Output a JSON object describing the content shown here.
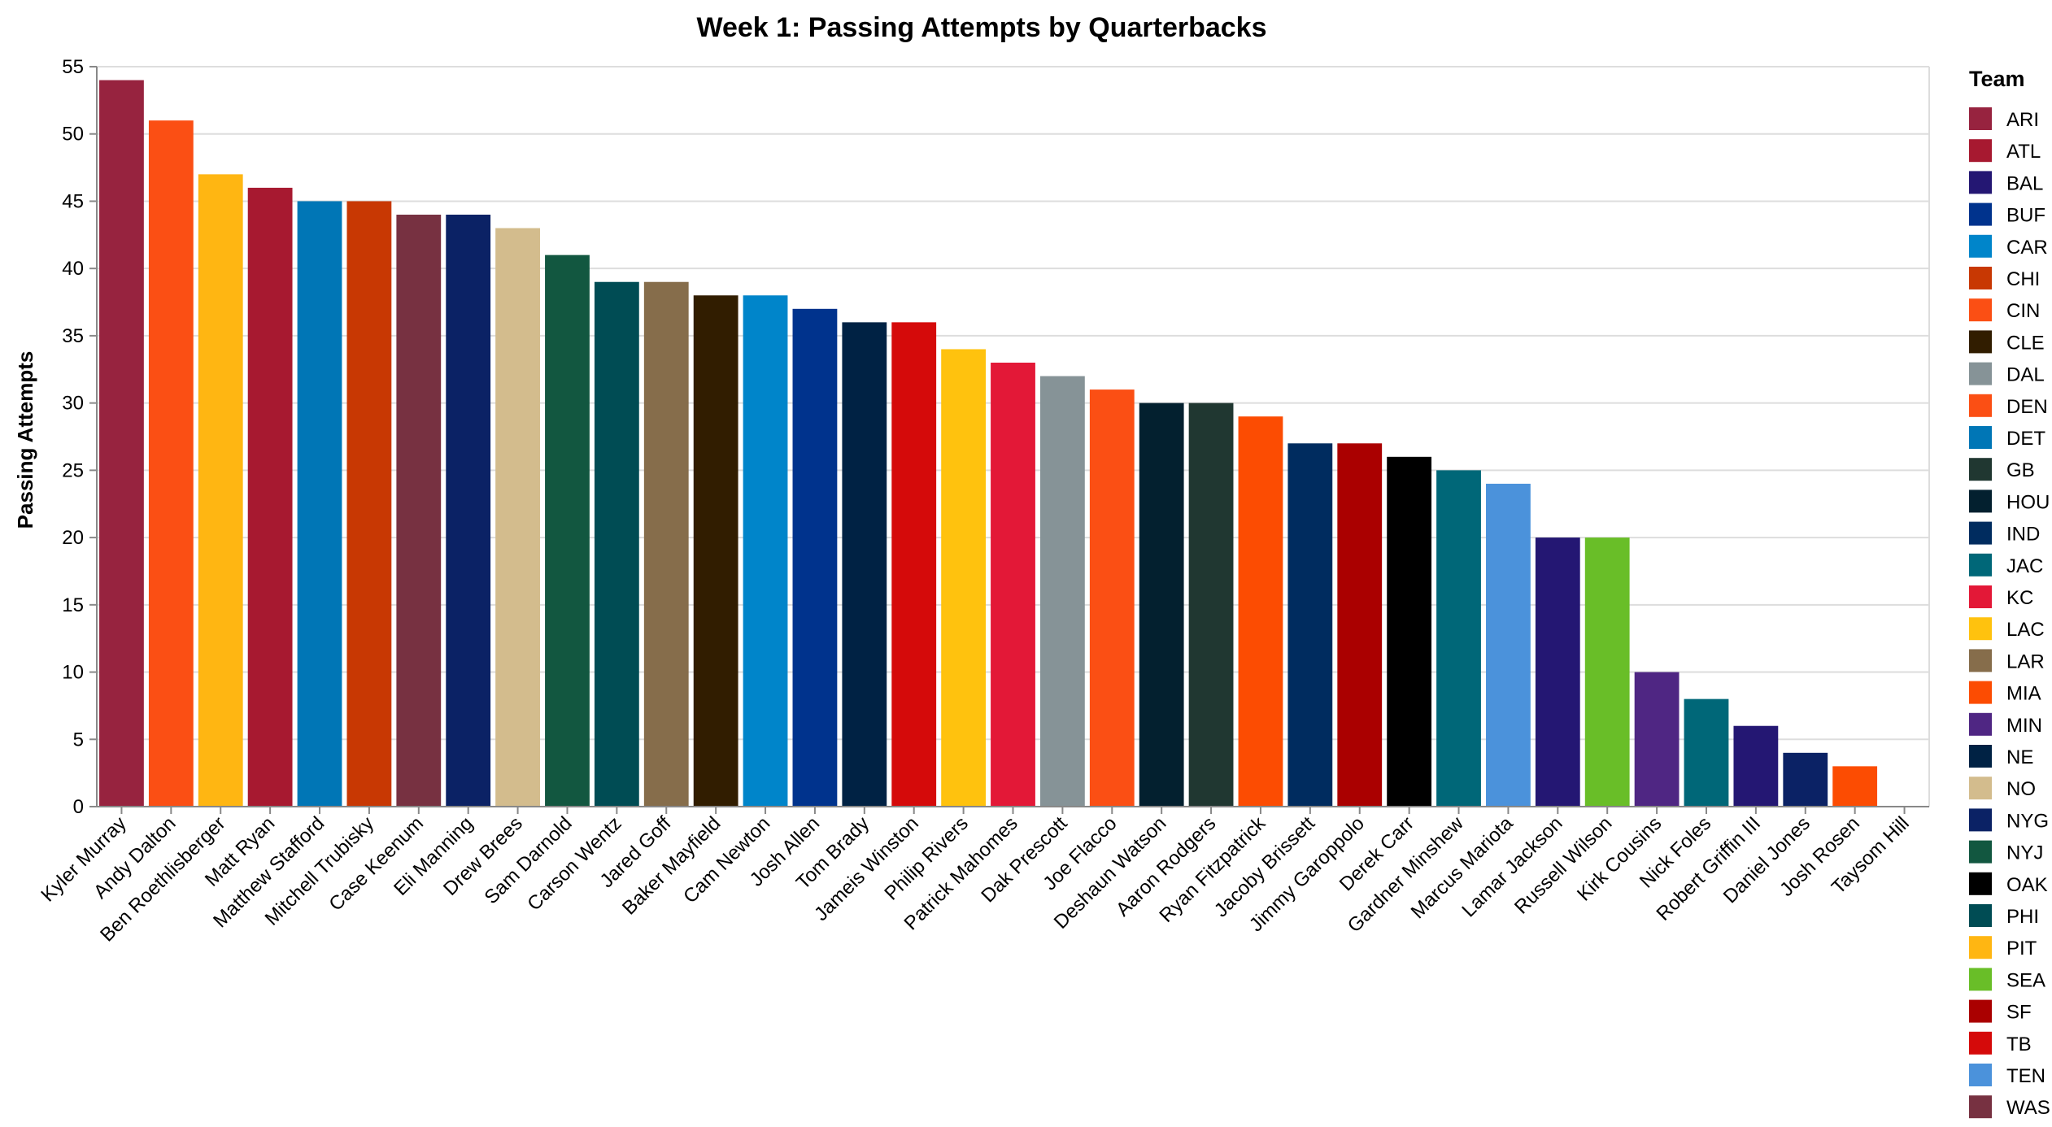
{
  "chart_data": {
    "type": "bar",
    "title": "Week 1: Passing Attempts by Quarterbacks",
    "xlabel": "",
    "ylabel": "Passing Attempts",
    "ylim": [
      0,
      55
    ],
    "yticks": [
      0,
      5,
      10,
      15,
      20,
      25,
      30,
      35,
      40,
      45,
      50,
      55
    ],
    "grid": true,
    "legend_title": "Team",
    "legend_position": "right",
    "categories": [
      "Kyler Murray",
      "Andy Dalton",
      "Ben Roethlisberger",
      "Matt Ryan",
      "Matthew Stafford",
      "Mitchell Trubisky",
      "Case Keenum",
      "Eli Manning",
      "Drew Brees",
      "Sam Darnold",
      "Carson Wentz",
      "Jared Goff",
      "Baker Mayfield",
      "Cam Newton",
      "Josh Allen",
      "Tom Brady",
      "Jameis Winston",
      "Philip Rivers",
      "Patrick Mahomes",
      "Dak Prescott",
      "Joe Flacco",
      "Deshaun Watson",
      "Aaron Rodgers",
      "Ryan Fitzpatrick",
      "Jacoby Brissett",
      "Jimmy Garoppolo",
      "Derek Carr",
      "Gardner Minshew",
      "Marcus Mariota",
      "Lamar Jackson",
      "Russell Wilson",
      "Kirk Cousins",
      "Nick Foles",
      "Robert Griffin III",
      "Daniel Jones",
      "Josh Rosen",
      "Taysom Hill"
    ],
    "values": [
      54,
      51,
      47,
      46,
      45,
      45,
      44,
      44,
      43,
      41,
      39,
      39,
      38,
      38,
      37,
      36,
      36,
      34,
      33,
      32,
      31,
      30,
      30,
      29,
      27,
      27,
      26,
      25,
      24,
      20,
      20,
      10,
      8,
      6,
      4,
      3,
      0
    ],
    "teams": [
      "ARI",
      "CIN",
      "PIT",
      "ATL",
      "DET",
      "CHI",
      "WAS",
      "NYG",
      "NO",
      "NYJ",
      "PHI",
      "LAR",
      "CLE",
      "CAR",
      "BUF",
      "NE",
      "TB",
      "LAC",
      "KC",
      "DAL",
      "DEN",
      "HOU",
      "GB",
      "MIA",
      "IND",
      "SF",
      "OAK",
      "JAC",
      "TEN",
      "BAL",
      "SEA",
      "MIN",
      "JAC",
      "BAL",
      "NYG",
      "MIA",
      "NO"
    ],
    "legend": [
      {
        "team": "ARI",
        "color": "#97233F"
      },
      {
        "team": "ATL",
        "color": "#A71930"
      },
      {
        "team": "BAL",
        "color": "#241773"
      },
      {
        "team": "BUF",
        "color": "#00338D"
      },
      {
        "team": "CAR",
        "color": "#0085CA"
      },
      {
        "team": "CHI",
        "color": "#C83803"
      },
      {
        "team": "CIN",
        "color": "#FB4F14"
      },
      {
        "team": "CLE",
        "color": "#311D00"
      },
      {
        "team": "DAL",
        "color": "#869397"
      },
      {
        "team": "DEN",
        "color": "#FB4F14"
      },
      {
        "team": "DET",
        "color": "#0076B6"
      },
      {
        "team": "GB",
        "color": "#203731"
      },
      {
        "team": "HOU",
        "color": "#03202F"
      },
      {
        "team": "IND",
        "color": "#002C5F"
      },
      {
        "team": "JAC",
        "color": "#006778"
      },
      {
        "team": "KC",
        "color": "#E31837"
      },
      {
        "team": "LAC",
        "color": "#FFC20E"
      },
      {
        "team": "LAR",
        "color": "#866D4B"
      },
      {
        "team": "MIA",
        "color": "#FC4C02"
      },
      {
        "team": "MIN",
        "color": "#4F2683"
      },
      {
        "team": "NE",
        "color": "#002244"
      },
      {
        "team": "NO",
        "color": "#D3BC8D"
      },
      {
        "team": "NYG",
        "color": "#0B2265"
      },
      {
        "team": "NYJ",
        "color": "#125740"
      },
      {
        "team": "OAK",
        "color": "#000000"
      },
      {
        "team": "PHI",
        "color": "#004C54"
      },
      {
        "team": "PIT",
        "color": "#FFB612"
      },
      {
        "team": "SEA",
        "color": "#69BE28"
      },
      {
        "team": "SF",
        "color": "#AA0000"
      },
      {
        "team": "TB",
        "color": "#D50A0A"
      },
      {
        "team": "TEN",
        "color": "#4B92DB"
      },
      {
        "team": "WAS",
        "color": "#773141"
      }
    ]
  }
}
